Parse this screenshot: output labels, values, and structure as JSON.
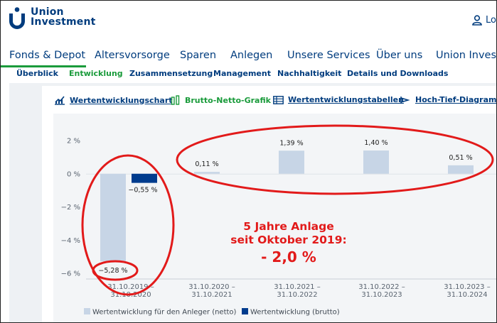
{
  "header": {
    "logo_line1": "Union",
    "logo_line2": "Investment",
    "login_label": "Lo"
  },
  "mainnav": [
    {
      "label": "Fonds & Depot",
      "active": true
    },
    {
      "label": "Altersvorsorge"
    },
    {
      "label": "Sparen"
    },
    {
      "label": "Anlegen"
    },
    {
      "label": "Unsere Services"
    },
    {
      "label": "Über uns"
    },
    {
      "label": "Union Investm"
    }
  ],
  "subnav": [
    {
      "label": "Überblick"
    },
    {
      "label": "Entwicklung",
      "active": true
    },
    {
      "label": "Zusammensetzung"
    },
    {
      "label": "Management"
    },
    {
      "label": "Nachhaltigkeit"
    },
    {
      "label": "Details und Downloads"
    }
  ],
  "tools": [
    {
      "label": "Wertentwicklungschart",
      "icon": "line-chart-icon"
    },
    {
      "label": "Brutto-Netto-Grafik",
      "icon": "bar-chart-icon",
      "active": true
    },
    {
      "label": "Wertentwicklungstabellen",
      "icon": "table-icon"
    },
    {
      "label": "Hoch-Tief-Diagramm",
      "icon": "high-low-icon"
    }
  ],
  "chart_data": {
    "type": "bar",
    "y_ticks": [
      "2 %",
      "0 %",
      "−2 %",
      "−4 %",
      "−6 %"
    ],
    "ylim": [
      -6,
      2
    ],
    "categories": [
      [
        "31.10.2019 –",
        "31.10.2020"
      ],
      [
        "31.10.2020 –",
        "31.10.2021"
      ],
      [
        "31.10.2021 –",
        "31.10.2022"
      ],
      [
        "31.10.2022 –",
        "31.10.2023"
      ],
      [
        "31.10.2023 –",
        "31.10.2024"
      ]
    ],
    "series": [
      {
        "name": "Wertentwicklung für den Anleger (netto)",
        "color": "#c7d5e6",
        "values": [
          -5.28,
          0.11,
          1.39,
          1.4,
          0.51
        ],
        "labels": [
          "−5,28 %",
          "0,11 %",
          "1,39 %",
          "1,40 %",
          "0,51 %"
        ]
      },
      {
        "name": "Wertentwicklung (brutto)",
        "color": "#003c8e",
        "values": [
          -0.55,
          null,
          null,
          null,
          null
        ],
        "labels": [
          "−0,55 %",
          "",
          "",
          "",
          ""
        ]
      }
    ],
    "annotation_color": "#e21a1a"
  },
  "annotation": {
    "line1": "5 Jahre Anlage",
    "line2": "seit Oktober 2019:",
    "line3": "- 2,0 %"
  },
  "colors": {
    "brand_blue": "#003c7e",
    "brand_green": "#1a9b3b"
  }
}
